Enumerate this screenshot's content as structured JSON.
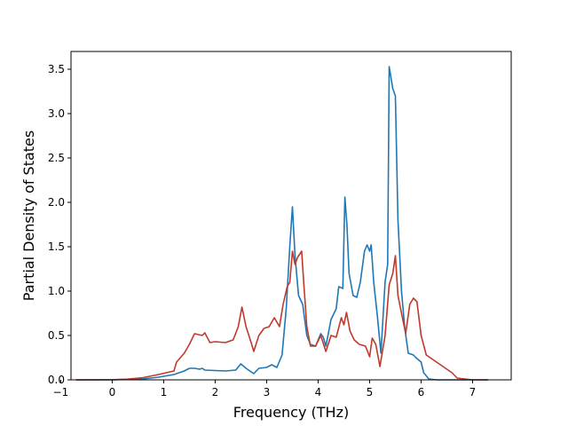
{
  "chart_data": {
    "type": "line",
    "xlabel": "Frequency (THz)",
    "ylabel": "Partial Density of States",
    "xlim": [
      -0.8,
      7.75
    ],
    "ylim": [
      0,
      3.7
    ],
    "x_ticks": [
      -1,
      0,
      1,
      2,
      3,
      4,
      5,
      6,
      7
    ],
    "y_ticks": [
      0.0,
      0.5,
      1.0,
      1.5,
      2.0,
      2.5,
      3.0,
      3.5
    ],
    "x_tick_labels": [
      "−1",
      "0",
      "1",
      "2",
      "3",
      "4",
      "5",
      "6",
      "7"
    ],
    "y_tick_labels": [
      "0.0",
      "0.5",
      "1.0",
      "1.5",
      "2.0",
      "2.5",
      "3.0",
      "3.5"
    ],
    "grid": false,
    "series": [
      {
        "color": "#1f77b4",
        "points": [
          [
            -0.7,
            0
          ],
          [
            0,
            0
          ],
          [
            0.3,
            0.005
          ],
          [
            0.6,
            0.01
          ],
          [
            0.9,
            0.03
          ],
          [
            1.2,
            0.06
          ],
          [
            1.4,
            0.1
          ],
          [
            1.5,
            0.13
          ],
          [
            1.6,
            0.13
          ],
          [
            1.7,
            0.12
          ],
          [
            1.75,
            0.13
          ],
          [
            1.8,
            0.11
          ],
          [
            2.0,
            0.105
          ],
          [
            2.2,
            0.1
          ],
          [
            2.4,
            0.11
          ],
          [
            2.5,
            0.18
          ],
          [
            2.6,
            0.13
          ],
          [
            2.75,
            0.07
          ],
          [
            2.85,
            0.13
          ],
          [
            3.0,
            0.14
          ],
          [
            3.1,
            0.17
          ],
          [
            3.2,
            0.14
          ],
          [
            3.3,
            0.28
          ],
          [
            3.38,
            0.8
          ],
          [
            3.45,
            1.5
          ],
          [
            3.5,
            1.95
          ],
          [
            3.55,
            1.4
          ],
          [
            3.62,
            0.95
          ],
          [
            3.7,
            0.85
          ],
          [
            3.78,
            0.5
          ],
          [
            3.85,
            0.4
          ],
          [
            3.95,
            0.38
          ],
          [
            4.05,
            0.52
          ],
          [
            4.1,
            0.48
          ],
          [
            4.15,
            0.38
          ],
          [
            4.25,
            0.68
          ],
          [
            4.35,
            0.8
          ],
          [
            4.4,
            1.05
          ],
          [
            4.48,
            1.03
          ],
          [
            4.52,
            2.06
          ],
          [
            4.56,
            1.75
          ],
          [
            4.6,
            1.2
          ],
          [
            4.68,
            0.95
          ],
          [
            4.75,
            0.93
          ],
          [
            4.82,
            1.1
          ],
          [
            4.9,
            1.45
          ],
          [
            4.95,
            1.52
          ],
          [
            5.0,
            1.45
          ],
          [
            5.03,
            1.52
          ],
          [
            5.08,
            1.1
          ],
          [
            5.15,
            0.72
          ],
          [
            5.22,
            0.3
          ],
          [
            5.3,
            1.1
          ],
          [
            5.35,
            1.3
          ],
          [
            5.38,
            3.53
          ],
          [
            5.45,
            3.28
          ],
          [
            5.5,
            3.2
          ],
          [
            5.55,
            1.8
          ],
          [
            5.62,
            1.0
          ],
          [
            5.68,
            0.6
          ],
          [
            5.75,
            0.3
          ],
          [
            5.85,
            0.28
          ],
          [
            5.9,
            0.25
          ],
          [
            6.0,
            0.2
          ],
          [
            6.05,
            0.08
          ],
          [
            6.15,
            0.01
          ],
          [
            6.3,
            0
          ],
          [
            6.7,
            0
          ],
          [
            7.3,
            0
          ]
        ]
      },
      {
        "color": "#c0392b",
        "points": [
          [
            -0.7,
            0
          ],
          [
            0,
            0.002
          ],
          [
            0.3,
            0.008
          ],
          [
            0.6,
            0.025
          ],
          [
            0.9,
            0.06
          ],
          [
            1.2,
            0.1
          ],
          [
            1.25,
            0.2
          ],
          [
            1.4,
            0.3
          ],
          [
            1.5,
            0.4
          ],
          [
            1.6,
            0.52
          ],
          [
            1.75,
            0.5
          ],
          [
            1.8,
            0.53
          ],
          [
            1.9,
            0.42
          ],
          [
            2.0,
            0.43
          ],
          [
            2.2,
            0.42
          ],
          [
            2.35,
            0.45
          ],
          [
            2.45,
            0.6
          ],
          [
            2.52,
            0.82
          ],
          [
            2.6,
            0.6
          ],
          [
            2.7,
            0.42
          ],
          [
            2.75,
            0.32
          ],
          [
            2.85,
            0.5
          ],
          [
            2.95,
            0.58
          ],
          [
            3.05,
            0.6
          ],
          [
            3.15,
            0.7
          ],
          [
            3.25,
            0.6
          ],
          [
            3.32,
            0.85
          ],
          [
            3.4,
            1.05
          ],
          [
            3.45,
            1.1
          ],
          [
            3.5,
            1.45
          ],
          [
            3.55,
            1.3
          ],
          [
            3.6,
            1.38
          ],
          [
            3.68,
            1.45
          ],
          [
            3.72,
            1.1
          ],
          [
            3.78,
            0.6
          ],
          [
            3.85,
            0.38
          ],
          [
            3.95,
            0.38
          ],
          [
            4.05,
            0.5
          ],
          [
            4.15,
            0.32
          ],
          [
            4.25,
            0.5
          ],
          [
            4.35,
            0.48
          ],
          [
            4.45,
            0.7
          ],
          [
            4.5,
            0.62
          ],
          [
            4.55,
            0.76
          ],
          [
            4.62,
            0.55
          ],
          [
            4.7,
            0.45
          ],
          [
            4.8,
            0.4
          ],
          [
            4.92,
            0.38
          ],
          [
            5.0,
            0.26
          ],
          [
            5.05,
            0.47
          ],
          [
            5.12,
            0.4
          ],
          [
            5.2,
            0.15
          ],
          [
            5.3,
            0.5
          ],
          [
            5.38,
            1.07
          ],
          [
            5.45,
            1.2
          ],
          [
            5.5,
            1.4
          ],
          [
            5.55,
            0.95
          ],
          [
            5.62,
            0.75
          ],
          [
            5.7,
            0.52
          ],
          [
            5.78,
            0.85
          ],
          [
            5.85,
            0.92
          ],
          [
            5.92,
            0.88
          ],
          [
            6.0,
            0.5
          ],
          [
            6.1,
            0.28
          ],
          [
            6.3,
            0.2
          ],
          [
            6.5,
            0.12
          ],
          [
            6.6,
            0.08
          ],
          [
            6.7,
            0.02
          ],
          [
            7.0,
            0
          ],
          [
            7.3,
            0
          ]
        ]
      }
    ]
  }
}
